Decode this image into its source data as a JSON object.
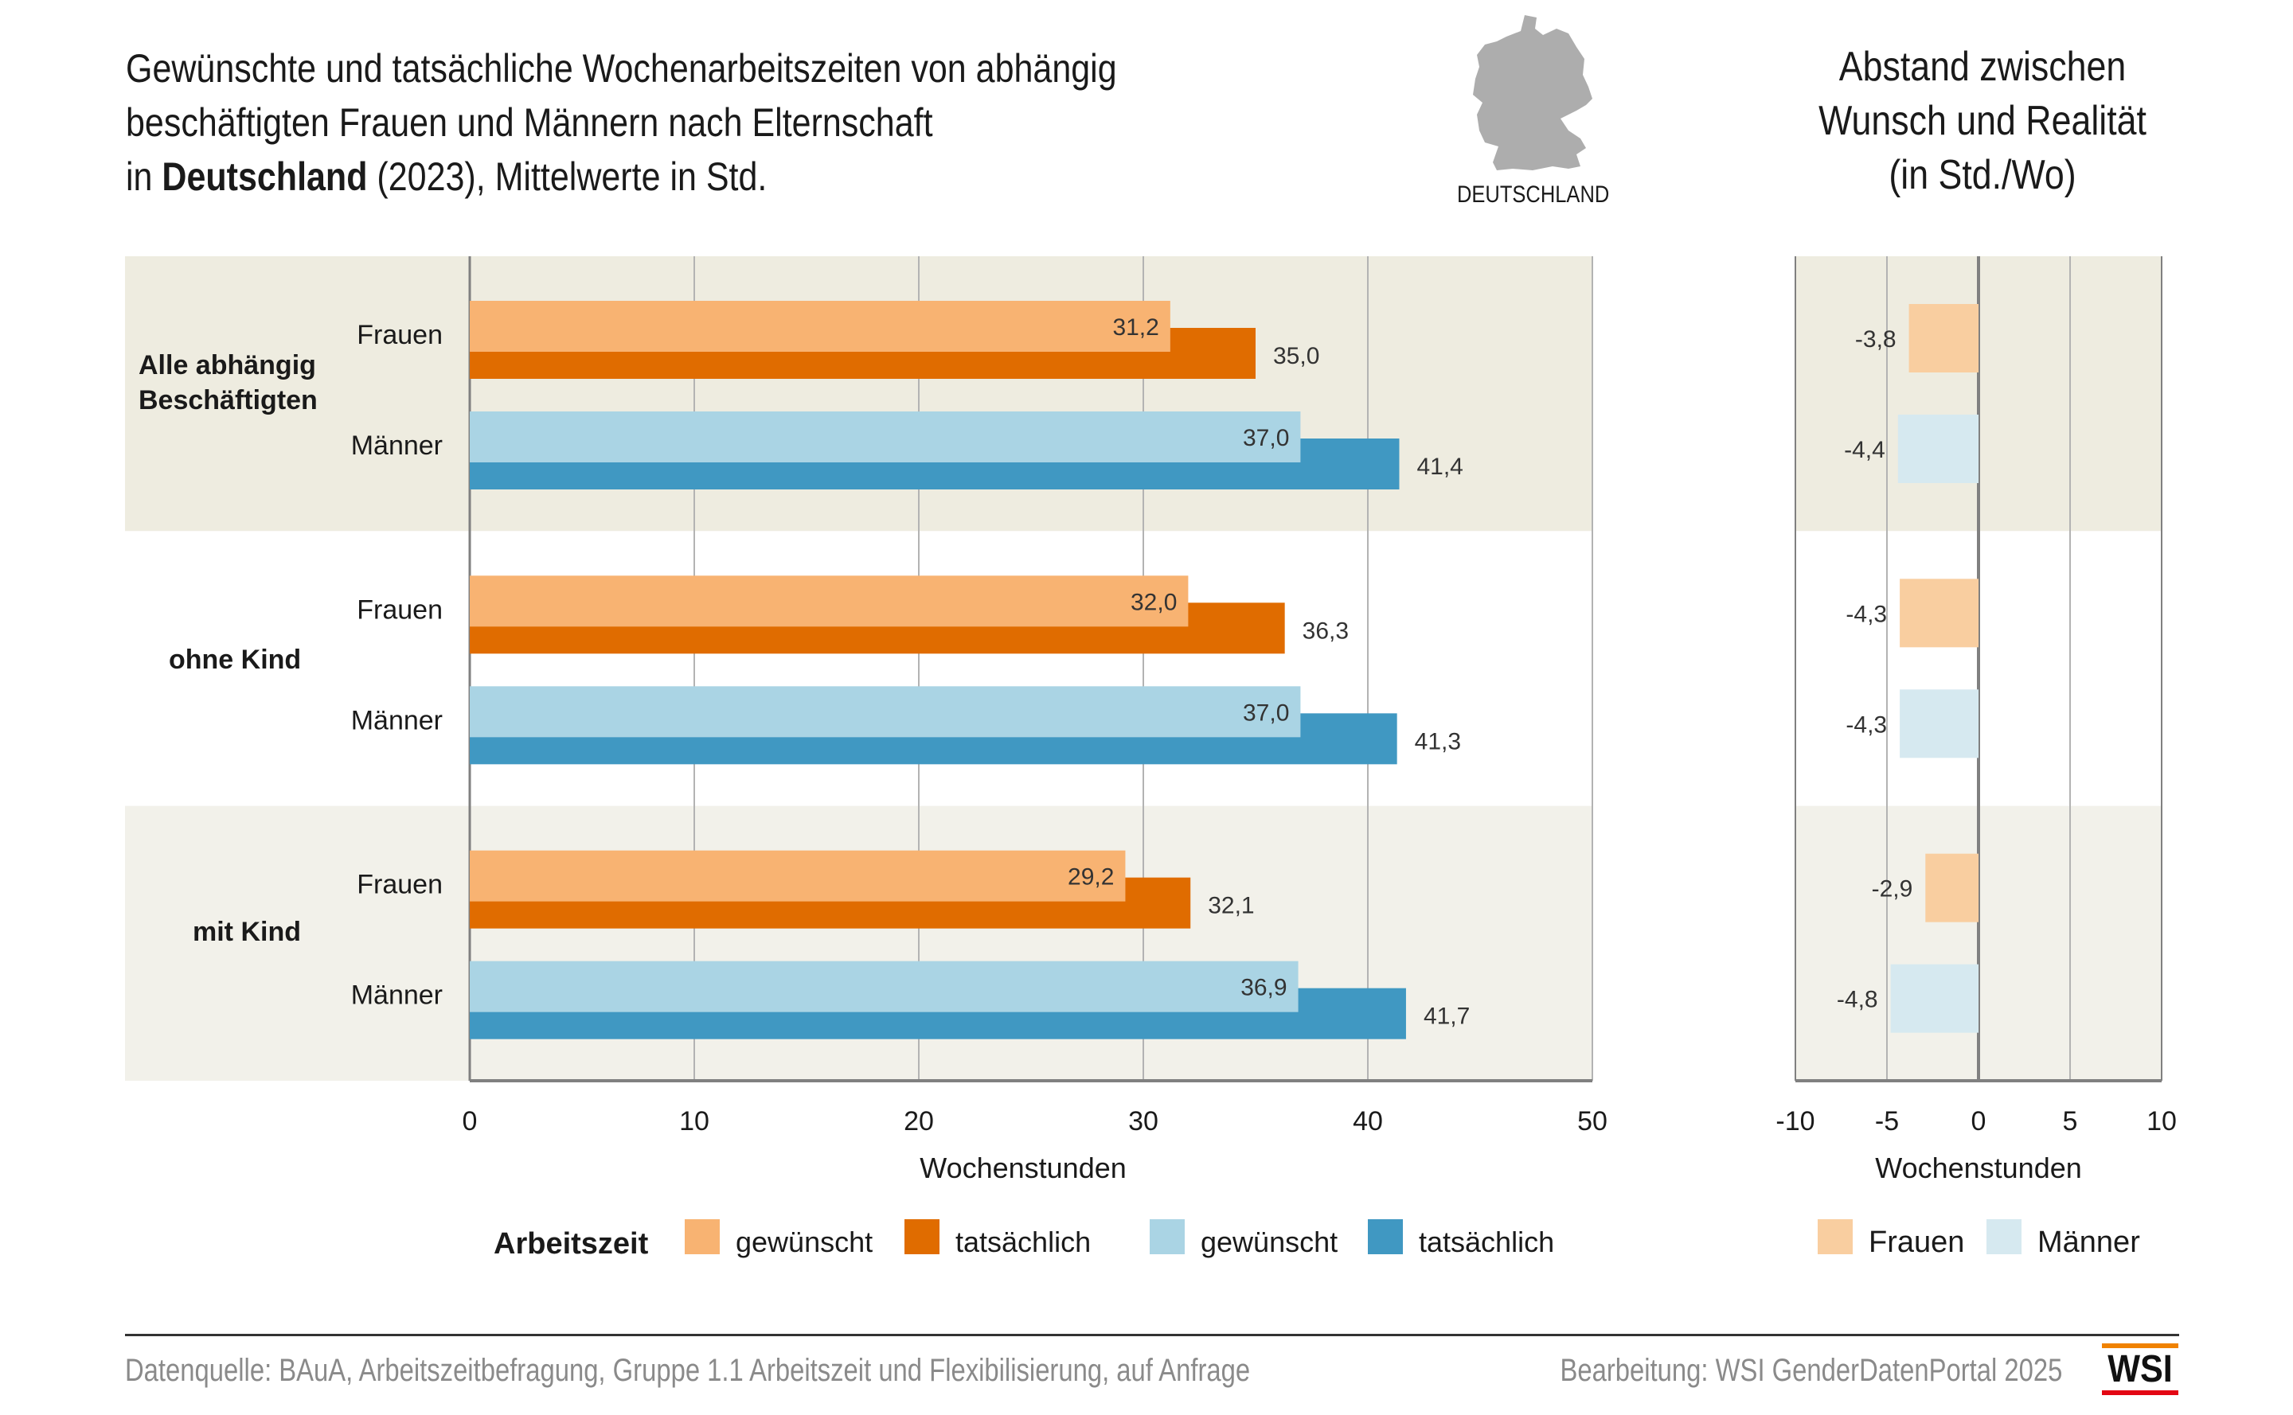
{
  "header": {
    "title_line1": "Gewünschte und tatsächliche Wochenarbeitszeiten von abhängig",
    "title_line2": "beschäftigten Frauen und Männern nach Elternschaft",
    "title_line3_pre": "in ",
    "title_line3_bold": "Deutschland",
    "title_line3_post": " (2023), Mittelwerte in Std.",
    "map_icon": "germany-map-icon",
    "map_label": "DEUTSCHLAND",
    "right_title_line1": "Abstand zwischen",
    "right_title_line2": "Wunsch und Realität",
    "right_title_line3": "(in Std./Wo)"
  },
  "colors": {
    "frauen_gewuenscht": "#F8B372",
    "frauen_tatsaechlich": "#E06C00",
    "maenner_gewuenscht": "#AAD4E4",
    "maenner_tatsaechlich": "#4098C2",
    "diff_frauen": "#F9CEA0",
    "diff_maenner": "#D6E9F0",
    "band_1": "#EEECE0",
    "band_3": "#F2F1EA",
    "grid": "#b3b3b3",
    "axis": "#808080",
    "wsi_orange": "#F08200",
    "wsi_red": "#E30613"
  },
  "chart_data": [
    {
      "type": "bar",
      "orientation": "horizontal",
      "groups": [
        "Alle abhängig Beschäftigten",
        "ohne Kind",
        "mit Kind"
      ],
      "categories": [
        "Frauen",
        "Männer"
      ],
      "series": [
        {
          "name": "Frauen gewünscht",
          "sex": "Frauen",
          "kind": "gewünscht",
          "values": [
            31.2,
            32.0,
            29.2
          ],
          "labels": [
            "31,2",
            "32,0",
            "29,2"
          ]
        },
        {
          "name": "Frauen tatsächlich",
          "sex": "Frauen",
          "kind": "tatsächlich",
          "values": [
            35.0,
            36.3,
            32.1
          ],
          "labels": [
            "35,0",
            "36,3",
            "32,1"
          ]
        },
        {
          "name": "Männer gewünscht",
          "sex": "Männer",
          "kind": "gewünscht",
          "values": [
            37.0,
            37.0,
            36.9
          ],
          "labels": [
            "37,0",
            "37,0",
            "36,9"
          ]
        },
        {
          "name": "Männer tatsächlich",
          "sex": "Männer",
          "kind": "tatsächlich",
          "values": [
            41.4,
            41.3,
            41.7
          ],
          "labels": [
            "41,4",
            "41,3",
            "41,7"
          ]
        }
      ],
      "xlabel": "Wochenstunden",
      "xlim": [
        0,
        50
      ],
      "xticks": [
        0,
        10,
        20,
        30,
        40,
        50
      ],
      "grid": true,
      "legend": {
        "title": "Arbeitszeit",
        "placement": "bottom",
        "entries": [
          "gewünscht",
          "tatsächlich",
          "gewünscht",
          "tatsächlich"
        ]
      }
    },
    {
      "type": "bar",
      "orientation": "horizontal",
      "title": "Abstand zwischen Wunsch und Realität (in Std./Wo)",
      "groups": [
        "Alle abhängig Beschäftigten",
        "ohne Kind",
        "mit Kind"
      ],
      "series": [
        {
          "name": "Frauen",
          "values": [
            -3.8,
            -4.3,
            -2.9
          ],
          "labels": [
            "-3,8",
            "-4,3",
            "-2,9"
          ]
        },
        {
          "name": "Männer",
          "values": [
            -4.4,
            -4.3,
            -4.8
          ],
          "labels": [
            "-4,4",
            "-4,3",
            "-4,8"
          ]
        }
      ],
      "xlabel": "Wochenstunden",
      "xlim": [
        -10,
        10
      ],
      "xticks": [
        "-10",
        "-5",
        "0",
        "5",
        "10"
      ],
      "grid": true,
      "legend": {
        "placement": "bottom",
        "entries": [
          "Frauen",
          "Männer"
        ]
      }
    }
  ],
  "footer": {
    "source": "Datenquelle: BAuA, Arbeitszeitbefragung, Gruppe 1.1 Arbeitszeit und Flexibilisierung, auf Anfrage",
    "credit": "Bearbeitung: WSI GenderDatenPortal 2025",
    "logo_text": "WSI"
  }
}
